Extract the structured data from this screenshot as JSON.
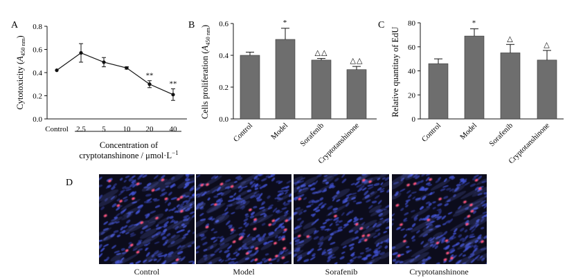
{
  "colors": {
    "bar": "#6e6e6e",
    "axis": "#111111",
    "micro_bg": "#0c0c1c",
    "nucleus_red": "#ff3a6a",
    "nucleus_blue": "#3f4fd8"
  },
  "chart_data": [
    {
      "panel": "A",
      "type": "line",
      "ylabel_main": "Cytotoxicity (",
      "ylabel_sym": "A",
      "ylabel_sub": "450 nm",
      "ylabel_close": ")",
      "xlabel_line1": "Concentration of",
      "xlabel_line2": "cryptotanshinone / μmol·L",
      "xlabel_sup": "−1",
      "categories": [
        "Control",
        "2.5",
        "5",
        "10",
        "20",
        "40"
      ],
      "values": [
        0.42,
        0.57,
        0.49,
        0.44,
        0.3,
        0.21
      ],
      "errors": [
        0.0,
        0.08,
        0.04,
        0.01,
        0.03,
        0.05
      ],
      "annotations": [
        "",
        "",
        "",
        "",
        "**",
        "**"
      ],
      "ylim": [
        0,
        0.8
      ],
      "yticks": [
        "0.0",
        "0.2",
        "0.4",
        "0.6",
        "0.8"
      ]
    },
    {
      "panel": "B",
      "type": "bar",
      "ylabel_main": "Cells proliferation (",
      "ylabel_sym": "A",
      "ylabel_sub": "450 nm",
      "ylabel_close": ")",
      "categories": [
        "Control",
        "Model",
        "Sorafenib",
        "Cryptotanshinone"
      ],
      "values": [
        0.4,
        0.5,
        0.37,
        0.31
      ],
      "errors": [
        0.02,
        0.07,
        0.01,
        0.02
      ],
      "annotations": [
        "",
        "*",
        "△△",
        "△△"
      ],
      "ylim": [
        0,
        0.6
      ],
      "yticks": [
        "0.0",
        "0.2",
        "0.4",
        "0.6"
      ]
    },
    {
      "panel": "C",
      "type": "bar",
      "ylabel_main": "Relative quantitay of EdU",
      "categories": [
        "Control",
        "Model",
        "Sorafenib",
        "Cryptotanshinone"
      ],
      "values": [
        46,
        69,
        55,
        49
      ],
      "errors": [
        4,
        6,
        7,
        8
      ],
      "annotations": [
        "",
        "*",
        "△",
        "△"
      ],
      "ylim": [
        0,
        80
      ],
      "yticks": [
        "0",
        "20",
        "40",
        "60",
        "80"
      ]
    }
  ],
  "panel_d": {
    "panel": "D",
    "labels": [
      "Control",
      "Model",
      "Sorafenib",
      "Cryptotanshinone"
    ]
  }
}
